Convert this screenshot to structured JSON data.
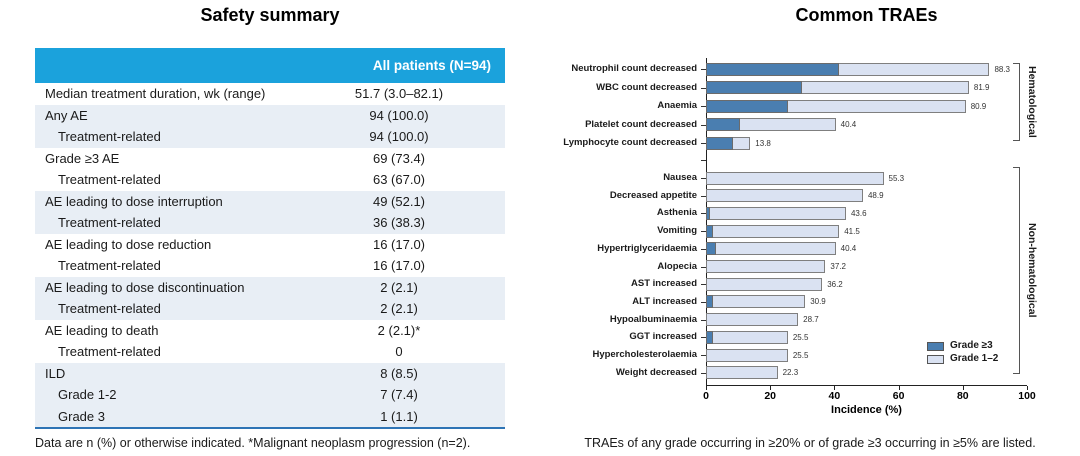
{
  "colors": {
    "table_header_bg": "#1BA2DC",
    "table_row_shade": "#E8EEF5",
    "table_bottom_line": "#2E74B5",
    "grade3_fill": "#4A7EB0",
    "grade12_fill": "#DAE2F2",
    "bar_border": "#7f7f7f"
  },
  "left_panel": {
    "title": "Safety summary",
    "table": {
      "header_value": "All patients (N=94)",
      "rows": [
        {
          "label": "Median treatment duration, wk (range)",
          "value": "51.7 (3.0–82.1)",
          "indent": false,
          "shaded": false
        },
        {
          "label": "Any AE",
          "value": "94 (100.0)",
          "indent": false,
          "shaded": true
        },
        {
          "label": "Treatment-related",
          "value": "94 (100.0)",
          "indent": true,
          "shaded": true
        },
        {
          "label": "Grade ≥3 AE",
          "value": "69 (73.4)",
          "indent": false,
          "shaded": false
        },
        {
          "label": "Treatment-related",
          "value": "63 (67.0)",
          "indent": true,
          "shaded": false
        },
        {
          "label": "AE leading to dose interruption",
          "value": "49 (52.1)",
          "indent": false,
          "shaded": true
        },
        {
          "label": "Treatment-related",
          "value": "36 (38.3)",
          "indent": true,
          "shaded": true
        },
        {
          "label": "AE leading to dose reduction",
          "value": "16 (17.0)",
          "indent": false,
          "shaded": false
        },
        {
          "label": "Treatment-related",
          "value": "16 (17.0)",
          "indent": true,
          "shaded": false
        },
        {
          "label": "AE leading to dose discontinuation",
          "value": "2 (2.1)",
          "indent": false,
          "shaded": true
        },
        {
          "label": "Treatment-related",
          "value": "2 (2.1)",
          "indent": true,
          "shaded": true
        },
        {
          "label": "AE leading to death",
          "value": "2 (2.1)*",
          "indent": false,
          "shaded": false
        },
        {
          "label": "Treatment-related",
          "value": "0",
          "indent": true,
          "shaded": false
        },
        {
          "label": "ILD",
          "value": "8 (8.5)",
          "indent": false,
          "shaded": true
        },
        {
          "label": "Grade 1-2",
          "value": "7 (7.4)",
          "indent": true,
          "shaded": true
        },
        {
          "label": "Grade 3",
          "value": "1 (1.1)",
          "indent": true,
          "shaded": true
        }
      ]
    },
    "footnote": "Data are n (%) or otherwise indicated. *Malignant neoplasm progression (n=2)."
  },
  "right_panel": {
    "title": "Common TRAEs",
    "footnote": "TRAEs of any grade occurring in ≥20% or of grade ≥3 occurring in ≥5% are listed.",
    "chart_data": {
      "type": "bar",
      "orientation": "horizontal",
      "stacked": true,
      "xlabel": "Incidence (%)",
      "xlim": [
        0,
        100
      ],
      "xticks": [
        0,
        20,
        40,
        60,
        80,
        100
      ],
      "value_labels_show": "total_only",
      "legend": [
        {
          "name": "Grade ≥3",
          "color": "#4A7EB0"
        },
        {
          "name": "Grade 1–2",
          "color": "#DAE2F2"
        }
      ],
      "groups": [
        {
          "name": "Hematological",
          "bars": [
            {
              "category": "Neutrophil count decreased",
              "total": 88.3,
              "grade3_est": 41.5
            },
            {
              "category": "WBC count decreased",
              "total": 81.9,
              "grade3_est": 29.8
            },
            {
              "category": "Anaemia",
              "total": 80.9,
              "grade3_est": 25.5
            },
            {
              "category": "Platelet count decreased",
              "total": 40.4,
              "grade3_est": 10.6
            },
            {
              "category": "Lymphocyte count decreased",
              "total": 13.8,
              "grade3_est": 8.5
            }
          ]
        },
        {
          "name": "Non-hematological",
          "bars": [
            {
              "category": "Nausea",
              "total": 55.3,
              "grade3_est": 0
            },
            {
              "category": "Decreased appetite",
              "total": 48.9,
              "grade3_est": 0
            },
            {
              "category": "Asthenia",
              "total": 43.6,
              "grade3_est": 1.1
            },
            {
              "category": "Vomiting",
              "total": 41.5,
              "grade3_est": 2.1
            },
            {
              "category": "Hypertriglyceridaemia",
              "total": 40.4,
              "grade3_est": 3.2
            },
            {
              "category": "Alopecia",
              "total": 37.2,
              "grade3_est": 0
            },
            {
              "category": "AST increased",
              "total": 36.2,
              "grade3_est": 0
            },
            {
              "category": "ALT increased",
              "total": 30.9,
              "grade3_est": 2.1
            },
            {
              "category": "Hypoalbuminaemia",
              "total": 28.7,
              "grade3_est": 0
            },
            {
              "category": "GGT increased",
              "total": 25.5,
              "grade3_est": 2.1
            },
            {
              "category": "Hypercholesterolaemia",
              "total": 25.5,
              "grade3_est": 0
            },
            {
              "category": "Weight decreased",
              "total": 22.3,
              "grade3_est": 0
            }
          ]
        }
      ]
    }
  }
}
